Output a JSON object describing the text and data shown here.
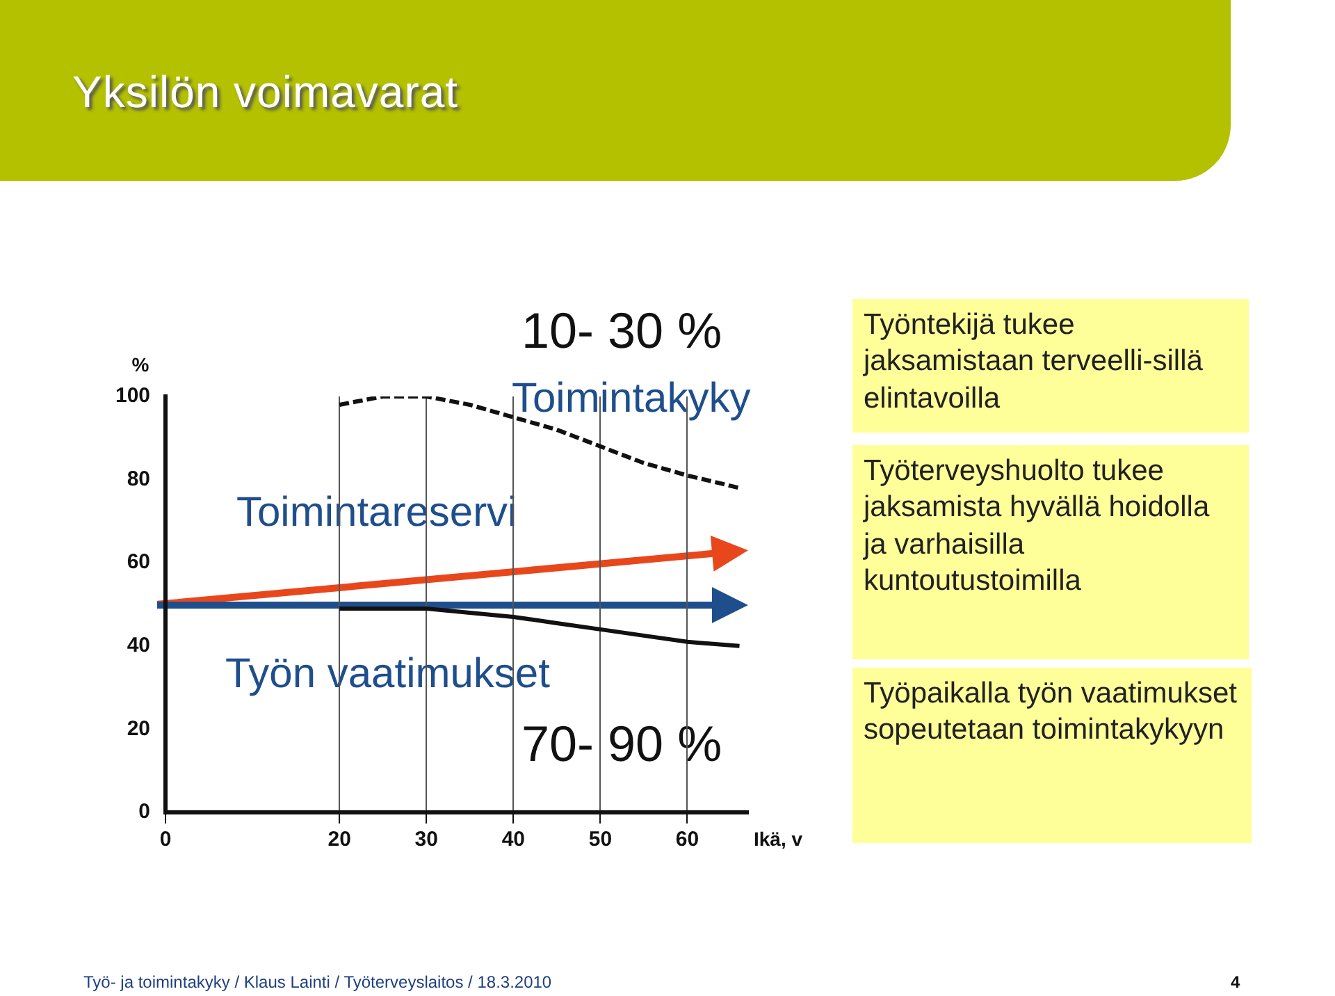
{
  "chart_data": {
    "type": "line",
    "title": "Yksilön voimavarat",
    "ylabel": "%",
    "xlabel": "Ikä, v",
    "xlim": [
      0,
      67
    ],
    "xticks": [
      0,
      20,
      30,
      40,
      50,
      60
    ],
    "ylim": [
      0,
      100
    ],
    "yticks": [
      0,
      20,
      40,
      60,
      80,
      100
    ],
    "grid": "x",
    "legend": false,
    "marker": "none",
    "series": [
      {
        "color": "#111111",
        "line_style": "dashed",
        "x": [
          20,
          25,
          30,
          35,
          40,
          45,
          50,
          55,
          60,
          66
        ],
        "values": [
          98,
          100,
          100,
          98,
          95,
          92,
          88,
          84,
          81,
          78
        ]
      },
      {
        "color": "#111111",
        "line_style": "solid",
        "x": [
          20,
          30,
          35,
          40,
          45,
          50,
          55,
          60,
          66
        ],
        "values": [
          49,
          49,
          48,
          47,
          45.5,
          44,
          42.5,
          41,
          40
        ]
      }
    ],
    "annotations": [
      "10- 30 %",
      "Toimintakyky",
      "Toimintareservi",
      "Työn vaatimukset",
      "70- 90 %",
      "Työntekijä tukee jaksamistaan terveelli-sillä elintavoilla",
      "Työterveyshuolto tukee jaksamista hyvällä hoidolla ja varhaisilla kuntoutustoimilla",
      "Työpaikalla työn vaatimukset sopeutetaan toimintakykyyn",
      "Työ- ja toimintakyky / Klaus Lainti / Työterveyslaitos / 18.3.2010",
      "4"
    ]
  }
}
